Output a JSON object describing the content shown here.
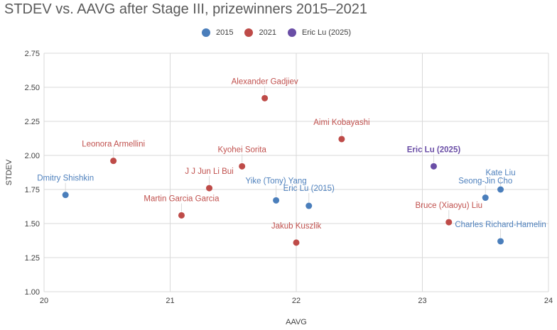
{
  "chart_data": {
    "type": "scatter",
    "title": "STDEV vs. AAVG after Stage III, prizewinners 2015–2021",
    "xlabel": "AAVG",
    "ylabel": "STDEV",
    "xlim": [
      20,
      24
    ],
    "ylim": [
      1.0,
      2.75
    ],
    "x_ticks": [
      "20",
      "21",
      "22",
      "23",
      "24"
    ],
    "y_ticks": [
      "1.00",
      "1.25",
      "1.50",
      "1.75",
      "2.00",
      "2.25",
      "2.50",
      "2.75"
    ],
    "grid": true,
    "legend_position": "top",
    "legend": [
      {
        "name": "2015",
        "color": "#4A7EBB"
      },
      {
        "name": "2021",
        "color": "#BE4B48"
      },
      {
        "name": "Eric Lu (2025)",
        "color": "#6A4EA6"
      }
    ],
    "series": [
      {
        "name": "2015",
        "color": "#4A7EBB",
        "label_color": "#4F81BD",
        "points": [
          {
            "label": "Dmitry Shishkin",
            "x": 20.17,
            "y": 1.71
          },
          {
            "label": "Yike (Tony) Yang",
            "x": 21.84,
            "y": 1.67
          },
          {
            "label": "Eric Lu (2015)",
            "x": 22.1,
            "y": 1.63
          },
          {
            "label": "Kate Liu",
            "x": 23.62,
            "y": 1.75
          },
          {
            "label": "Seong-Jin Cho",
            "x": 23.5,
            "y": 1.69
          },
          {
            "label": "Charles Richard-Hamelin",
            "x": 23.62,
            "y": 1.37
          }
        ]
      },
      {
        "name": "2021",
        "color": "#BE4B48",
        "label_color": "#C0504D",
        "points": [
          {
            "label": "Leonora Armellini",
            "x": 20.55,
            "y": 1.96
          },
          {
            "label": "Alexander Gadjiev",
            "x": 21.75,
            "y": 2.42
          },
          {
            "label": "Kyohei Sorita",
            "x": 21.57,
            "y": 1.92
          },
          {
            "label": "J J Jun Li Bui",
            "x": 21.31,
            "y": 1.76
          },
          {
            "label": "Martin Garcia Garcia",
            "x": 21.09,
            "y": 1.56
          },
          {
            "label": "Aimi Kobayashi",
            "x": 22.36,
            "y": 2.12
          },
          {
            "label": "Jakub Kuszlik",
            "x": 22.0,
            "y": 1.36
          },
          {
            "label": "Bruce (Xiaoyu) Liu",
            "x": 23.21,
            "y": 1.51
          }
        ]
      },
      {
        "name": "Eric Lu (2025)",
        "color": "#6A4EA6",
        "label_color": "#6A4EA6",
        "label_bold": true,
        "points": [
          {
            "label": "Eric Lu (2025)",
            "x": 23.09,
            "y": 1.92
          }
        ]
      }
    ]
  }
}
